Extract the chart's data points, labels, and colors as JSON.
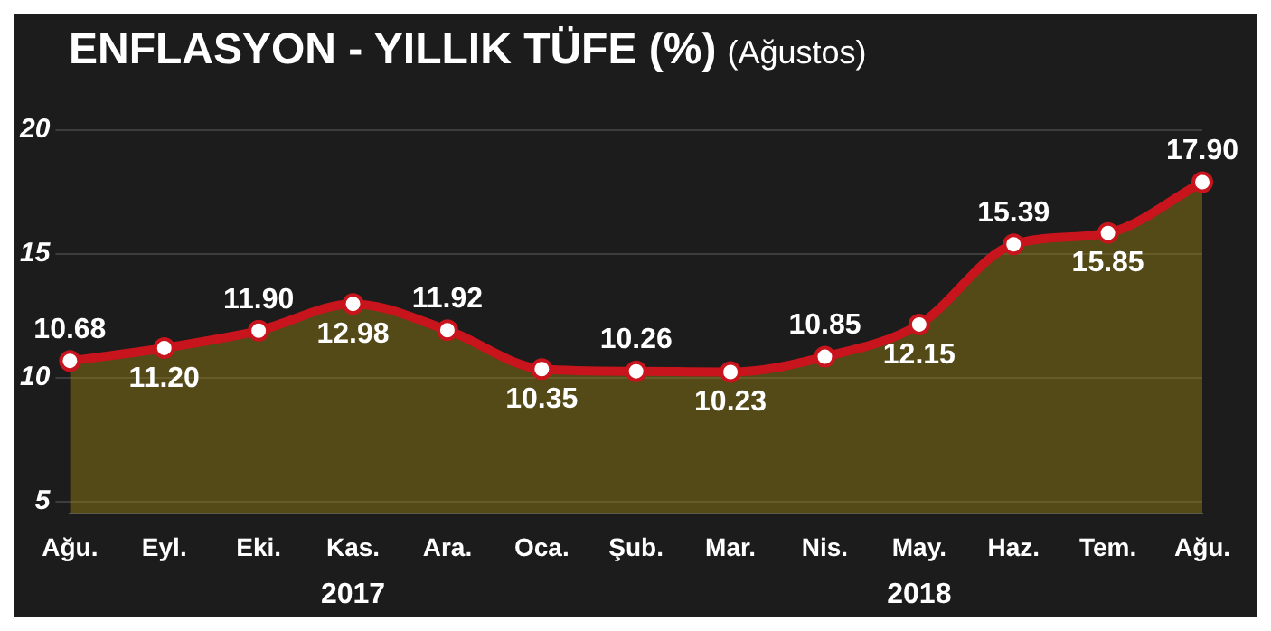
{
  "chart_data": {
    "type": "area",
    "title": "ENFLASYON - YILLIK TÜFE (%)",
    "subtitle": "(Ağustos)",
    "categories": [
      "Ağu.",
      "Eyl.",
      "Eki.",
      "Kas.",
      "Ara.",
      "Oca.",
      "Şub.",
      "Mar.",
      "Nis.",
      "May.",
      "Haz.",
      "Tem.",
      "Ağu."
    ],
    "values": [
      10.68,
      11.2,
      11.9,
      12.98,
      11.92,
      10.35,
      10.26,
      10.23,
      10.85,
      12.15,
      15.39,
      15.85,
      17.9
    ],
    "value_labels": [
      "10.68",
      "11.20",
      "11.90",
      "12.98",
      "11.92",
      "10.35",
      "10.26",
      "10.23",
      "10.85",
      "12.15",
      "15.39",
      "15.85",
      "17.90"
    ],
    "color": "#c8141c",
    "marker": "circle",
    "grid": "y",
    "ylim": [
      4.5,
      20
    ],
    "yticks": [
      5,
      10,
      15,
      20
    ],
    "annotations": [
      "2017",
      "2018"
    ]
  }
}
